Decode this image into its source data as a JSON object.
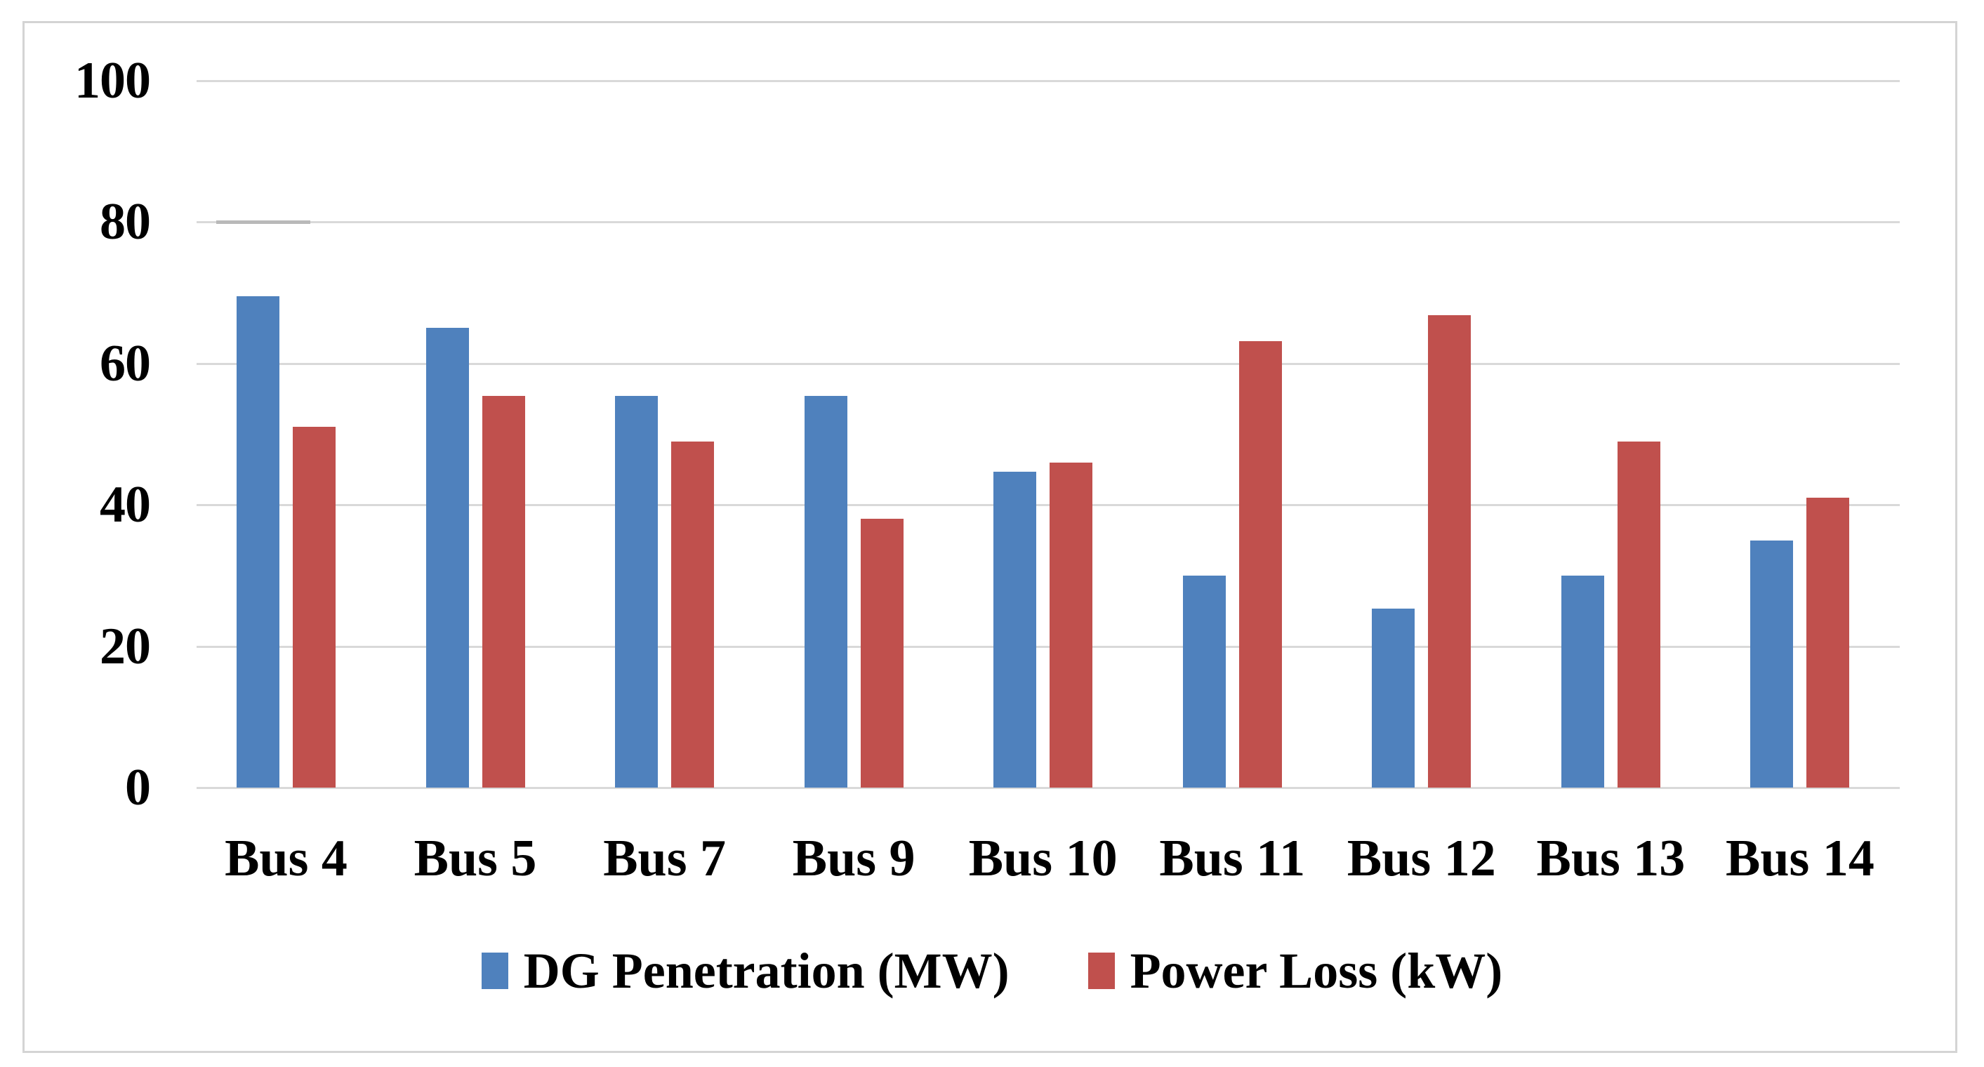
{
  "chart_data": {
    "type": "bar",
    "categories": [
      "Bus 4",
      "Bus 5",
      "Bus 7",
      "Bus 9",
      "Bus 10",
      "Bus 11",
      "Bus 12",
      "Bus 13",
      "Bus 14"
    ],
    "series": [
      {
        "name": "DG Penetration (MW)",
        "color": "#4F81BD",
        "values": [
          69.5,
          65,
          55.4,
          55.4,
          44.7,
          30,
          25.3,
          30,
          35
        ]
      },
      {
        "name": "Power Loss (kW)",
        "color": "#C0504D",
        "values": [
          51,
          55.4,
          49,
          38,
          46,
          63.2,
          66.8,
          49,
          41
        ]
      }
    ],
    "xlabel": "",
    "ylabel": "",
    "ylim": [
      0,
      100
    ],
    "y_ticks": [
      100,
      80,
      60,
      40,
      20,
      0
    ],
    "y_tick_labels": [
      "100",
      "80",
      "60",
      "40",
      "20",
      "0"
    ],
    "grid": true,
    "gridline_color": "#d9d9d9",
    "plot_border_color": "#d4d4d4",
    "legend_position": "bottom"
  }
}
